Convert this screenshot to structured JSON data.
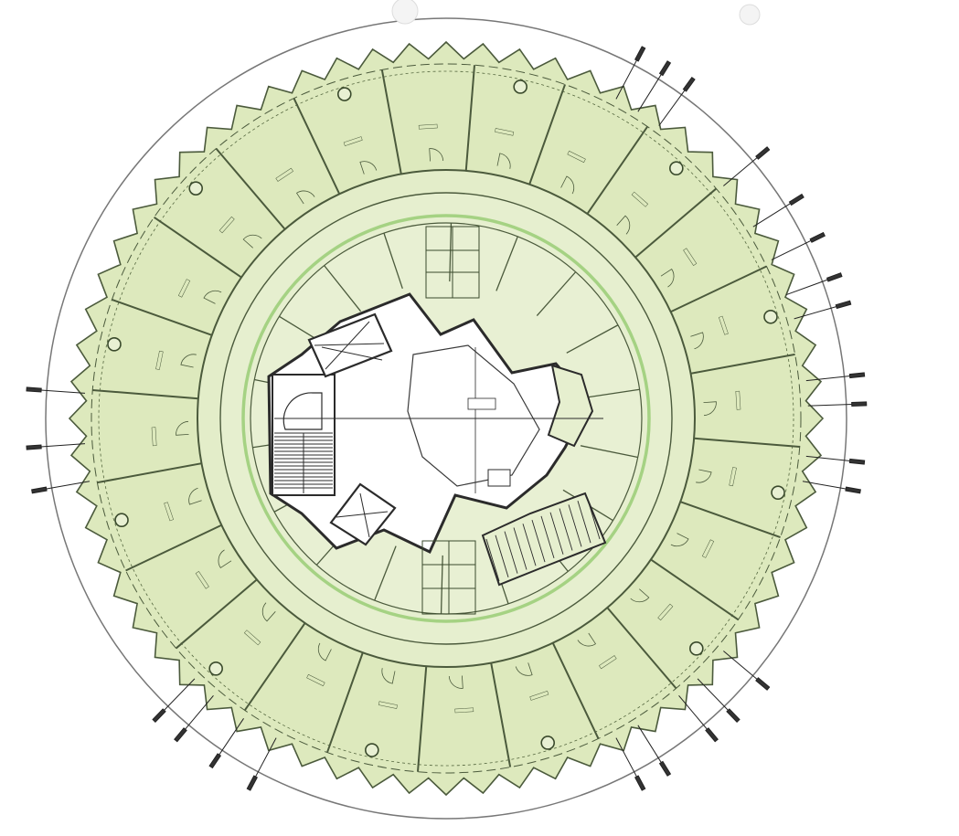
{
  "colors": {
    "background": "#ffffff",
    "floor_fill": "#dde9bd",
    "inner_fill": "#e6efcf",
    "core_fill": "#ffffff",
    "wall": "#4b5a3c",
    "dark_wall": "#2b2b2b",
    "outer_ring": "#6e6e6e",
    "highlight": "#8fc86a"
  },
  "icons": [
    "column-circle",
    "door-swing-arc",
    "stair-treads",
    "elevator-cross"
  ]
}
